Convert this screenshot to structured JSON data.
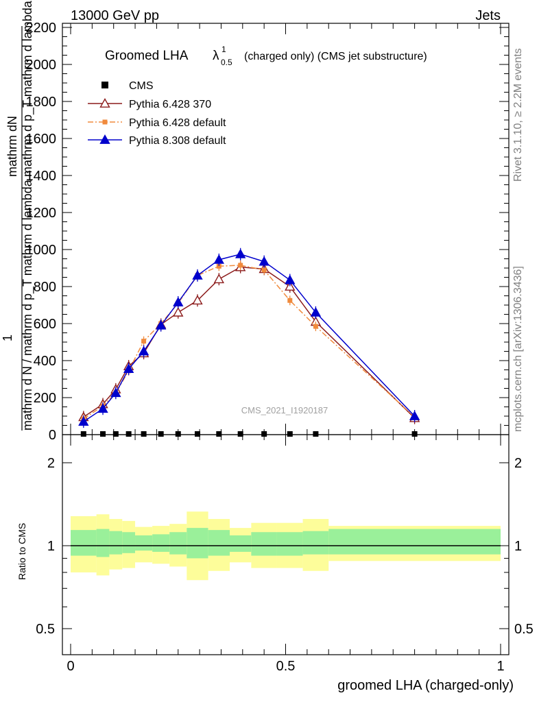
{
  "header": {
    "left": "13000 GeV pp",
    "right": "Jets",
    "side_rivet": "Rivet 3.1.10, ≥ 2.2M events",
    "side_mcplots": "mcplots.cern.ch [arXiv:1306.3436]"
  },
  "chart_data": [
    {
      "type": "line",
      "title_main": "Groomed LHA",
      "title_lambda": "λ",
      "title_sup": "1",
      "title_sub": "0.5",
      "title_rest": "(charged only) (CMS jet substructure)",
      "watermark": "CMS_2021_I1920187",
      "ylabel_top": "mathrm dN",
      "ylabel_top2": "mathrm d p_T mathrm d lambda",
      "ylabel_one": "1",
      "ylabel_bottom": "mathrm d N / mathrm d p_T mathrm d lambda",
      "ylim": [
        0,
        2200
      ],
      "yticks": [
        0,
        200,
        400,
        600,
        800,
        1000,
        1200,
        1400,
        1600,
        1800,
        2000,
        2200
      ],
      "ytick_labels": [
        "0",
        "200",
        "400",
        "600",
        "800",
        "1000",
        "1200",
        "1400",
        "1600",
        "1800",
        "2000",
        "2200"
      ],
      "xlim": [
        -0.02,
        1.02
      ],
      "cms_markers_x": [
        0.03,
        0.075,
        0.105,
        0.135,
        0.17,
        0.21,
        0.25,
        0.295,
        0.345,
        0.395,
        0.45,
        0.51,
        0.57,
        0.8
      ],
      "series": [
        {
          "name": "CMS",
          "style": "marker-square",
          "color": "#000000",
          "x": [
            0.03,
            0.075,
            0.105,
            0.135,
            0.17,
            0.21,
            0.25,
            0.295,
            0.345,
            0.395,
            0.45,
            0.51,
            0.57,
            0.8
          ],
          "values": [
            0,
            0,
            0,
            0,
            0,
            0,
            0,
            0,
            0,
            0,
            0,
            0,
            0,
            0
          ]
        },
        {
          "name": "Pythia 6.428 370",
          "style": "open-triangle-solid",
          "color": "#8b1a1a",
          "x": [
            0.03,
            0.075,
            0.105,
            0.135,
            0.17,
            0.21,
            0.25,
            0.295,
            0.345,
            0.395,
            0.45,
            0.51,
            0.57,
            0.8
          ],
          "values": [
            95,
            165,
            245,
            370,
            440,
            595,
            660,
            725,
            840,
            905,
            895,
            800,
            610,
            90
          ]
        },
        {
          "name": "Pythia 6.428 default",
          "style": "square-dashdot",
          "color": "#f08a3c",
          "x": [
            0.03,
            0.075,
            0.105,
            0.135,
            0.17,
            0.21,
            0.25,
            0.295,
            0.345,
            0.395,
            0.45,
            0.51,
            0.57,
            0.8
          ],
          "values": [
            85,
            155,
            225,
            345,
            505,
            600,
            710,
            860,
            910,
            915,
            890,
            725,
            585,
            95
          ]
        },
        {
          "name": "Pythia 8.308 default",
          "style": "filled-triangle-solid",
          "color": "#0000cc",
          "x": [
            0.03,
            0.075,
            0.105,
            0.135,
            0.17,
            0.21,
            0.25,
            0.295,
            0.345,
            0.395,
            0.45,
            0.51,
            0.57,
            0.8
          ],
          "values": [
            70,
            140,
            225,
            355,
            450,
            590,
            715,
            860,
            945,
            975,
            935,
            835,
            660,
            100
          ]
        }
      ]
    },
    {
      "type": "area",
      "ylabel": "Ratio to CMS",
      "xlabel": "groomed LHA (charged-only)",
      "ylim": [
        0.4,
        2.4
      ],
      "yscale": "log",
      "yticks": [
        0.5,
        1,
        2
      ],
      "ytick_labels": [
        "0.5",
        "1",
        "2"
      ],
      "xticks": [
        0,
        0.5,
        1
      ],
      "xtick_labels": [
        "0",
        "0.5",
        "1"
      ],
      "bins": [
        0,
        0.06,
        0.09,
        0.12,
        0.15,
        0.19,
        0.23,
        0.27,
        0.32,
        0.37,
        0.42,
        0.48,
        0.54,
        0.6,
        1.0
      ],
      "band_inner_up": [
        1.14,
        1.15,
        1.13,
        1.12,
        1.09,
        1.1,
        1.12,
        1.16,
        1.14,
        1.09,
        1.12,
        1.12,
        1.13,
        1.15
      ],
      "band_inner_down": [
        0.92,
        0.91,
        0.93,
        0.94,
        0.96,
        0.95,
        0.93,
        0.9,
        0.92,
        0.95,
        0.92,
        0.92,
        0.93,
        0.93
      ],
      "band_outer_up": [
        1.28,
        1.3,
        1.25,
        1.23,
        1.17,
        1.18,
        1.2,
        1.33,
        1.25,
        1.16,
        1.21,
        1.21,
        1.25,
        1.18
      ],
      "band_outer_down": [
        0.8,
        0.78,
        0.82,
        0.83,
        0.87,
        0.86,
        0.84,
        0.75,
        0.81,
        0.87,
        0.83,
        0.83,
        0.81,
        0.88
      ],
      "band_colors": {
        "inner": "#9af09a",
        "outer": "#fdfd9a"
      }
    }
  ]
}
